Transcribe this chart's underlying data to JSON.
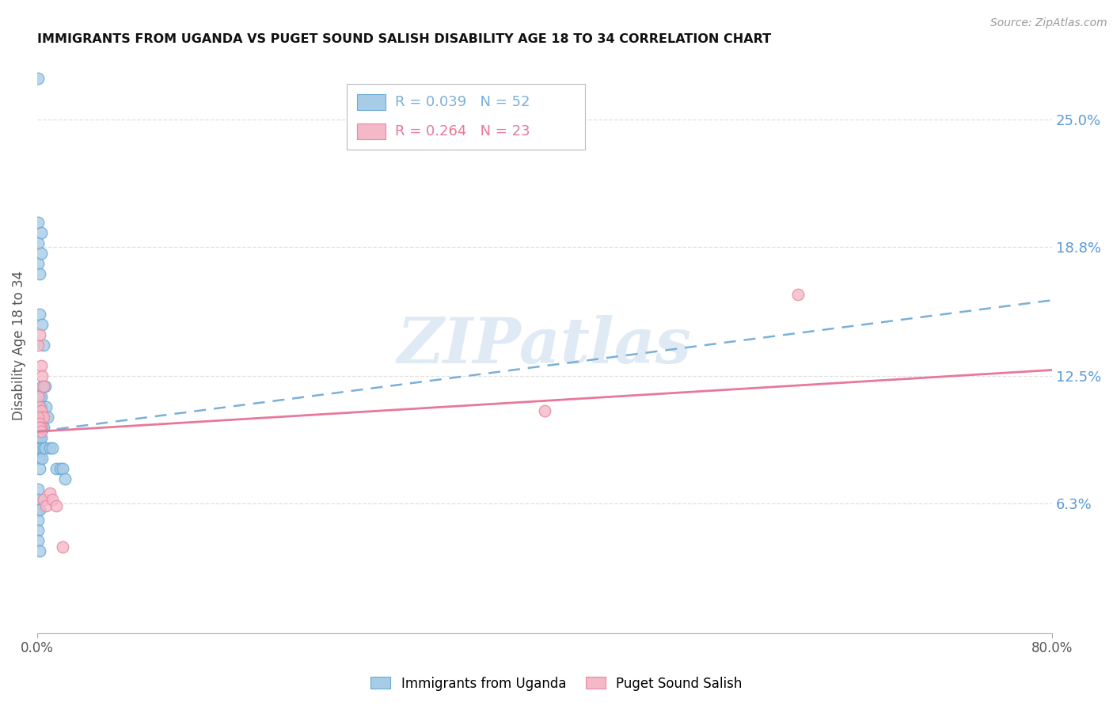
{
  "title": "IMMIGRANTS FROM UGANDA VS PUGET SOUND SALISH DISABILITY AGE 18 TO 34 CORRELATION CHART",
  "source": "Source: ZipAtlas.com",
  "ylabel": "Disability Age 18 to 34",
  "xlim": [
    0.0,
    0.8
  ],
  "ylim": [
    0.0,
    0.28
  ],
  "xtick_labels": [
    "0.0%",
    "80.0%"
  ],
  "xtick_positions": [
    0.0,
    0.8
  ],
  "ytick_labels": [
    "6.3%",
    "12.5%",
    "18.8%",
    "25.0%"
  ],
  "ytick_positions": [
    0.063,
    0.125,
    0.188,
    0.25
  ],
  "legend_label1": "Immigrants from Uganda",
  "legend_label2": "Puget Sound Salish",
  "R1": 0.039,
  "N1": 52,
  "R2": 0.264,
  "N2": 23,
  "color1": "#a8cce8",
  "color2": "#f4b8c8",
  "color1_edge": "#6aaad4",
  "color2_edge": "#e888a0",
  "trend1_color": "#7ab0d8",
  "trend2_color": "#e87898",
  "watermark": "ZIPatlas",
  "trend1_x0": 0.0,
  "trend1_y0": 0.098,
  "trend1_x1": 0.8,
  "trend1_y1": 0.162,
  "trend2_x0": 0.0,
  "trend2_y0": 0.098,
  "trend2_x1": 0.8,
  "trend2_y1": 0.128,
  "blue_x": [
    0.001,
    0.001,
    0.001,
    0.001,
    0.001,
    0.001,
    0.001,
    0.001,
    0.001,
    0.001,
    0.002,
    0.002,
    0.002,
    0.002,
    0.002,
    0.002,
    0.002,
    0.002,
    0.002,
    0.002,
    0.003,
    0.003,
    0.003,
    0.003,
    0.003,
    0.003,
    0.003,
    0.004,
    0.004,
    0.004,
    0.004,
    0.005,
    0.005,
    0.005,
    0.006,
    0.006,
    0.007,
    0.008,
    0.01,
    0.012,
    0.015,
    0.018,
    0.02,
    0.022,
    0.001,
    0.001,
    0.001,
    0.001,
    0.001,
    0.001,
    0.002,
    0.002
  ],
  "blue_y": [
    0.27,
    0.2,
    0.19,
    0.18,
    0.115,
    0.11,
    0.105,
    0.1,
    0.095,
    0.088,
    0.175,
    0.155,
    0.115,
    0.11,
    0.105,
    0.1,
    0.095,
    0.09,
    0.085,
    0.08,
    0.195,
    0.185,
    0.115,
    0.11,
    0.1,
    0.095,
    0.09,
    0.15,
    0.12,
    0.1,
    0.085,
    0.14,
    0.1,
    0.09,
    0.12,
    0.09,
    0.11,
    0.105,
    0.09,
    0.09,
    0.08,
    0.08,
    0.08,
    0.075,
    0.07,
    0.065,
    0.06,
    0.055,
    0.05,
    0.045,
    0.06,
    0.04
  ],
  "pink_x": [
    0.001,
    0.002,
    0.003,
    0.004,
    0.005,
    0.001,
    0.002,
    0.003,
    0.004,
    0.005,
    0.001,
    0.002,
    0.003,
    0.002,
    0.003,
    0.005,
    0.007,
    0.01,
    0.012,
    0.015,
    0.02,
    0.6,
    0.4
  ],
  "pink_y": [
    0.14,
    0.145,
    0.13,
    0.125,
    0.12,
    0.115,
    0.11,
    0.108,
    0.105,
    0.105,
    0.105,
    0.102,
    0.1,
    0.1,
    0.098,
    0.065,
    0.062,
    0.068,
    0.065,
    0.062,
    0.042,
    0.165,
    0.108
  ]
}
